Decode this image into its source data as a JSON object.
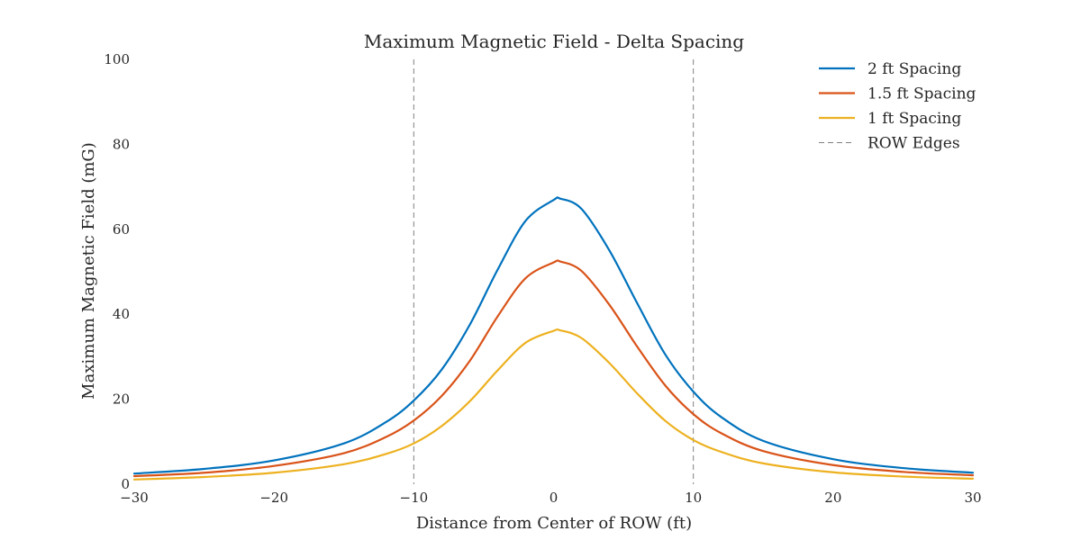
{
  "chart_data": {
    "type": "line",
    "title": "Maximum Magnetic Field - Delta Spacing",
    "xlabel": "Distance from Center of ROW (ft)",
    "ylabel": "Maximum Magnetic Field (mG)",
    "xlim": [
      -30,
      30
    ],
    "ylim": [
      0,
      100
    ],
    "xticks": [
      -30,
      -20,
      -10,
      0,
      10,
      20,
      30
    ],
    "xtick_labels": [
      "−30",
      "−20",
      "−10",
      "0",
      "10",
      "20",
      "30"
    ],
    "yticks": [
      0,
      20,
      40,
      60,
      80,
      100
    ],
    "ytick_labels": [
      "0",
      "20",
      "40",
      "60",
      "80",
      "100"
    ],
    "grid": false,
    "legend_position": "top-right",
    "x": [
      -30,
      -25,
      -20,
      -15,
      -12,
      -10,
      -8,
      -6,
      -4,
      -2,
      0,
      0.5,
      2,
      4,
      6,
      8,
      10,
      12,
      15,
      20,
      25,
      30
    ],
    "series": [
      {
        "name": "2 ft Spacing",
        "color": "#0072bd",
        "values": [
          2.5,
          3.6,
          5.6,
          9.6,
          14.6,
          19.7,
          27.0,
          37.5,
          50.5,
          62.0,
          66.9,
          67.2,
          64.8,
          55.0,
          42.5,
          30.5,
          21.8,
          15.8,
          10.2,
          5.9,
          3.8,
          2.7
        ]
      },
      {
        "name": "1.5 ft Spacing",
        "color": "#d95319",
        "values": [
          1.9,
          2.7,
          4.3,
          7.3,
          11.1,
          15.0,
          20.8,
          29.0,
          39.5,
          48.5,
          52.2,
          52.4,
          50.2,
          42.2,
          32.3,
          23.2,
          16.5,
          12.0,
          7.8,
          4.5,
          2.9,
          2.1
        ]
      },
      {
        "name": "1 ft Spacing",
        "color": "#edb120",
        "values": [
          1.1,
          1.7,
          2.7,
          4.7,
          7.1,
          9.6,
          13.7,
          19.5,
          26.8,
          33.3,
          36.1,
          36.2,
          34.4,
          28.5,
          21.3,
          14.9,
          10.4,
          7.6,
          4.9,
          2.8,
          1.8,
          1.3
        ]
      }
    ],
    "reference_lines": {
      "name": "ROW Edges",
      "x": [
        -10,
        10
      ],
      "color": "#808080",
      "style": "dashed"
    }
  }
}
